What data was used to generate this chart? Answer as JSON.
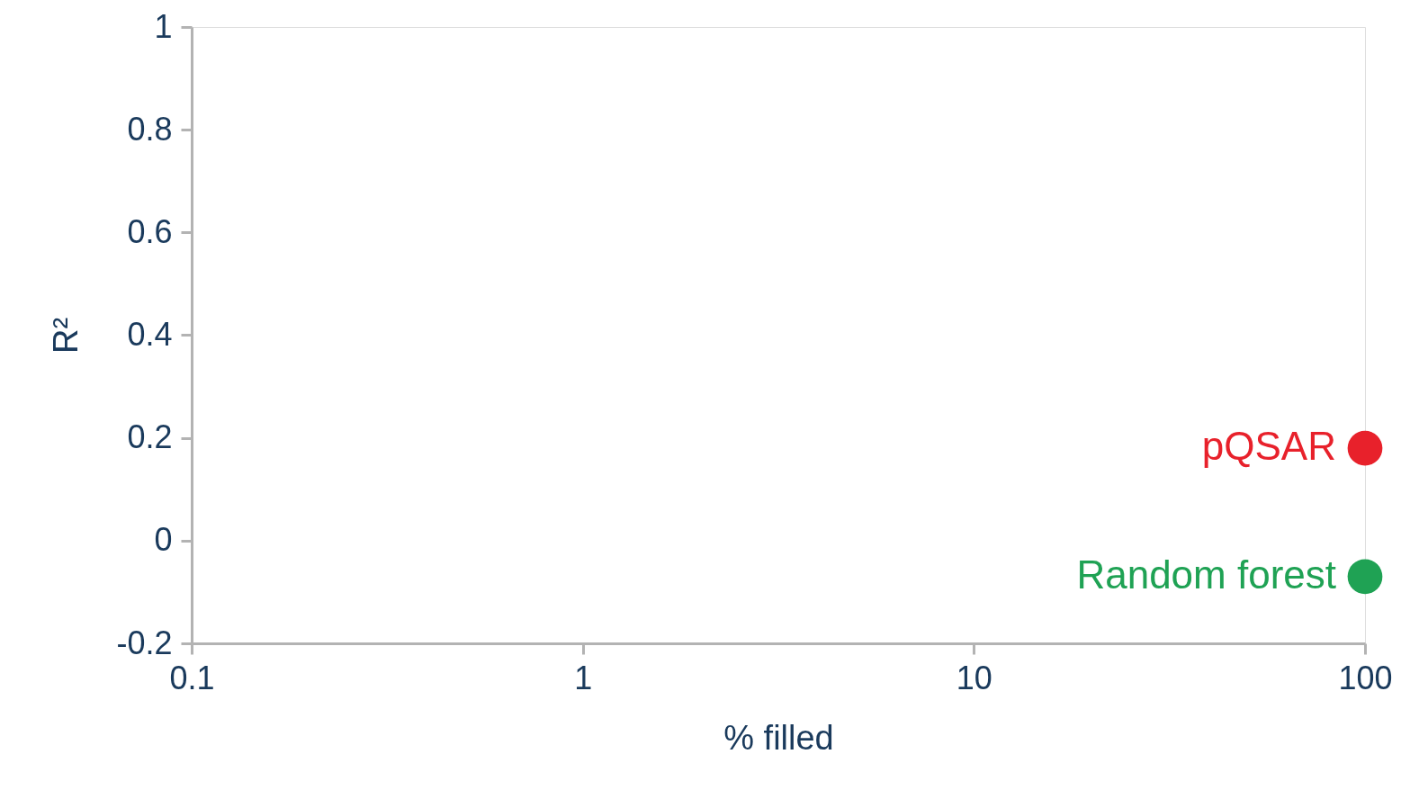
{
  "chart_data": {
    "type": "scatter",
    "xlabel": "% filled",
    "ylabel": "R²",
    "log": "x",
    "xlim": [
      0.1,
      100
    ],
    "xticks": [
      0.1,
      1,
      10,
      100
    ],
    "ylim": [
      -0.2,
      1
    ],
    "yticks": [
      -0.2,
      0,
      0.2,
      0.4,
      0.6,
      0.8,
      1
    ],
    "grid": false,
    "legend": false,
    "marker": "circle",
    "series": [
      {
        "name": "pQSAR",
        "color": "#e8212b",
        "x": [
          100
        ],
        "values": [
          0.18
        ]
      },
      {
        "name": "Random forest",
        "color": "#1fa254",
        "x": [
          100
        ],
        "values": [
          -0.07
        ]
      }
    ]
  }
}
